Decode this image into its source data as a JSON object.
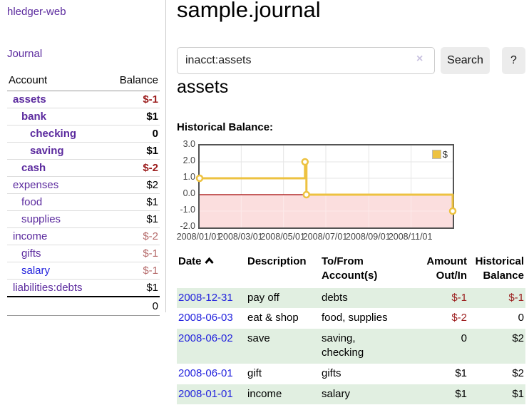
{
  "sidebar": {
    "brand": "hledger-web",
    "journal_link": "Journal",
    "table": {
      "headers": [
        "Account",
        "Balance"
      ],
      "rows": [
        {
          "name": "assets",
          "indent": 1,
          "bold": true,
          "balance": "$-1",
          "balance_style": "neg"
        },
        {
          "name": "bank",
          "indent": 2,
          "bold": true,
          "balance": "$1",
          "balance_style": ""
        },
        {
          "name": "checking",
          "indent": 3,
          "bold": true,
          "balance": "0",
          "balance_style": ""
        },
        {
          "name": "saving",
          "indent": 3,
          "bold": true,
          "balance": "$1",
          "balance_style": ""
        },
        {
          "name": "cash",
          "indent": 2,
          "bold": true,
          "balance": "$-2",
          "balance_style": "neg"
        },
        {
          "name": "expenses",
          "indent": 1,
          "bold": false,
          "balance": "$2",
          "balance_style": ""
        },
        {
          "name": "food",
          "indent": 2,
          "bold": false,
          "balance": "$1",
          "balance_style": ""
        },
        {
          "name": "supplies",
          "indent": 2,
          "bold": false,
          "balance": "$1",
          "balance_style": ""
        },
        {
          "name": "income",
          "indent": 1,
          "bold": false,
          "balance": "$-2",
          "balance_style": "muted"
        },
        {
          "name": "gifts",
          "indent": 2,
          "bold": false,
          "balance": "$-1",
          "balance_style": "muted"
        },
        {
          "name": "salary",
          "indent": 2,
          "bold": false,
          "balance": "$-1",
          "balance_style": "muted",
          "link_style": "blue"
        },
        {
          "name": "liabilities:debts",
          "indent": 1,
          "bold": false,
          "balance": "$1",
          "balance_style": ""
        }
      ],
      "total": "0"
    }
  },
  "main": {
    "title": "sample.journal",
    "search": {
      "value": "inacct:assets",
      "clear_icon": "×",
      "button_label": "Search",
      "help_label": "?"
    },
    "account_heading": "assets",
    "chart_title": "Historical Balance:"
  },
  "chart_data": {
    "type": "line",
    "step": true,
    "series": [
      {
        "name": "$",
        "color": "#edc240",
        "points": [
          [
            "2008-01-01",
            1
          ],
          [
            "2008-06-01",
            2
          ],
          [
            "2008-06-03",
            0
          ],
          [
            "2008-12-31",
            -1
          ]
        ]
      }
    ],
    "xrange": [
      "2008-01-01",
      "2008-12-31"
    ],
    "ylim": [
      -2,
      3
    ],
    "yticks": [
      "3.0",
      "2.0",
      "1.0",
      "0.0",
      "-1.0",
      "-2.0"
    ],
    "ytick_values": [
      3,
      2,
      1,
      0,
      -1,
      -2
    ],
    "xticks": [
      "2008/01/01",
      "2008/03/01",
      "2008/05/01",
      "2008/07/01",
      "2008/09/01",
      "2008/11/01"
    ],
    "xtick_dates": [
      "2008-01-01",
      "2008-03-01",
      "2008-05-01",
      "2008-07-01",
      "2008-09-01",
      "2008-11-01"
    ],
    "legend": {
      "label": "$",
      "position": "top-right"
    },
    "grid": true,
    "negative_region_color": "#fbdede",
    "zero_line_color": "#a40000"
  },
  "register": {
    "headers": [
      "Date",
      "Description",
      "To/From Account(s)",
      "Amount Out/In",
      "Historical Balance"
    ],
    "rows": [
      {
        "date": "2008-12-31",
        "description": "pay off",
        "accounts": "debts",
        "amount": "$-1",
        "amount_style": "neg",
        "balance": "$-1",
        "balance_style": "neg",
        "striped": true
      },
      {
        "date": "2008-06-03",
        "description": "eat & shop",
        "accounts": "food, supplies",
        "amount": "$-2",
        "amount_style": "neg",
        "balance": "0",
        "balance_style": "",
        "striped": false
      },
      {
        "date": "2008-06-02",
        "description": "save",
        "accounts": "saving,\nchecking",
        "amount": "0",
        "amount_style": "",
        "balance": "$2",
        "balance_style": "",
        "striped": true
      },
      {
        "date": "2008-06-01",
        "description": "gift",
        "accounts": "gifts",
        "amount": "$1",
        "amount_style": "",
        "balance": "$2",
        "balance_style": "",
        "striped": false
      },
      {
        "date": "2008-01-01",
        "description": "income",
        "accounts": "salary",
        "amount": "$1",
        "amount_style": "",
        "balance": "$1",
        "balance_style": "",
        "striped": true
      }
    ]
  },
  "colors": {
    "link_purple": "#5b2a9e",
    "link_blue": "#2222dd",
    "negative_strong": "#9b1c1c",
    "negative_muted": "#b56a6a",
    "row_stripe_green": "#e1efe1",
    "series_yellow": "#edc240",
    "chart_negative_bg": "#fbdede",
    "chart_zero_line": "#a40000",
    "button_gray": "#ececec"
  }
}
